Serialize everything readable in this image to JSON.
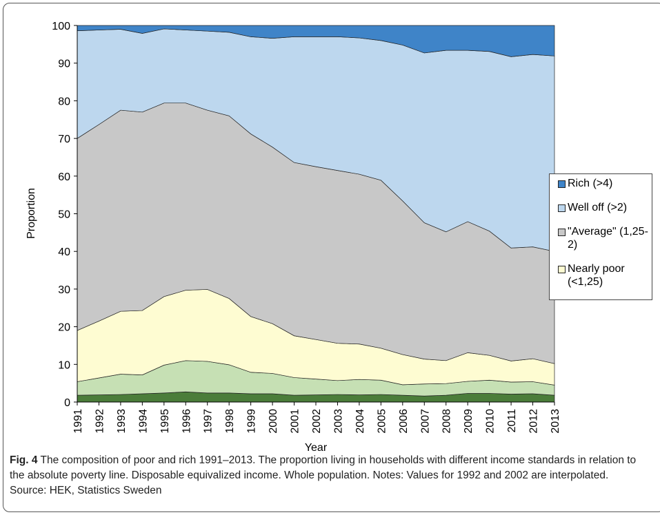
{
  "chart_data": {
    "type": "stacked-area",
    "y_label": "Proportion",
    "x_label": "Year",
    "categories": [
      "1991",
      "1992",
      "1993",
      "1994",
      "1995",
      "1996",
      "1997",
      "1998",
      "1999",
      "2000",
      "2001",
      "2002",
      "2003",
      "2004",
      "2005",
      "2006",
      "2007",
      "2008",
      "2009",
      "2010",
      "2011",
      "2012",
      "2013"
    ],
    "ylim": [
      0,
      100
    ],
    "yticks": [
      0,
      10,
      20,
      30,
      40,
      50,
      60,
      70,
      80,
      90,
      100
    ],
    "series": [
      {
        "color": "#4b7d3a",
        "values": [
          1.8,
          1.9,
          2.0,
          2.2,
          2.4,
          2.7,
          2.4,
          2.4,
          2.2,
          2.2,
          1.8,
          1.9,
          2.0,
          1.9,
          2.0,
          1.8,
          1.6,
          1.8,
          2.3,
          2.3,
          2.1,
          2.2,
          1.8
        ]
      },
      {
        "color": "#c6e0b4",
        "values": [
          3.6,
          4.5,
          5.4,
          5.0,
          7.4,
          8.3,
          8.4,
          7.5,
          5.7,
          5.4,
          4.7,
          4.2,
          3.7,
          4.1,
          3.8,
          2.8,
          3.2,
          3.1,
          3.2,
          3.5,
          3.2,
          3.2,
          2.7
        ]
      },
      {
        "name": "Nearly poor (<1,25)",
        "color": "#fefcd2",
        "values": [
          13.6,
          15.1,
          16.7,
          17.1,
          18.2,
          18.7,
          19.1,
          17.6,
          14.8,
          13.2,
          11.1,
          10.5,
          9.9,
          9.4,
          8.5,
          8.0,
          6.6,
          6.1,
          7.6,
          6.6,
          5.6,
          6.1,
          5.7
        ]
      },
      {
        "name": "\"Average\" (1,25-2)",
        "color": "#c8c8c8",
        "values": [
          51.0,
          52.2,
          53.4,
          52.7,
          51.4,
          49.7,
          47.6,
          48.5,
          48.5,
          46.9,
          46.0,
          45.9,
          45.9,
          45.1,
          44.6,
          40.8,
          36.2,
          34.2,
          34.8,
          33.0,
          30.0,
          29.7,
          29.8
        ]
      },
      {
        "name": "Well off (>2)",
        "color": "#bdd7ee",
        "values": [
          28.6,
          25.1,
          21.5,
          20.9,
          19.7,
          19.4,
          21.0,
          22.2,
          25.8,
          28.9,
          33.4,
          34.5,
          35.5,
          36.2,
          37.1,
          41.4,
          45.1,
          48.2,
          45.5,
          47.7,
          50.8,
          51.1,
          51.9
        ]
      },
      {
        "name": "Rich (>4)",
        "color": "#3f84c8",
        "values": [
          1.4,
          1.2,
          1.0,
          2.1,
          0.9,
          1.2,
          1.5,
          1.8,
          3.0,
          3.4,
          3.0,
          3.0,
          3.0,
          3.3,
          4.0,
          5.2,
          7.3,
          6.6,
          6.6,
          6.9,
          8.3,
          7.7,
          8.1
        ]
      }
    ]
  },
  "caption": {
    "label": "Fig. 4",
    "text": "The composition of poor and rich 1991–2013. The proportion living in households with different income standards in relation to the absolute poverty line. Disposable equivalized income. Whole population. Notes: Values for 1992 and 2002 are interpolated. Source: HEK, Statistics Sweden"
  }
}
